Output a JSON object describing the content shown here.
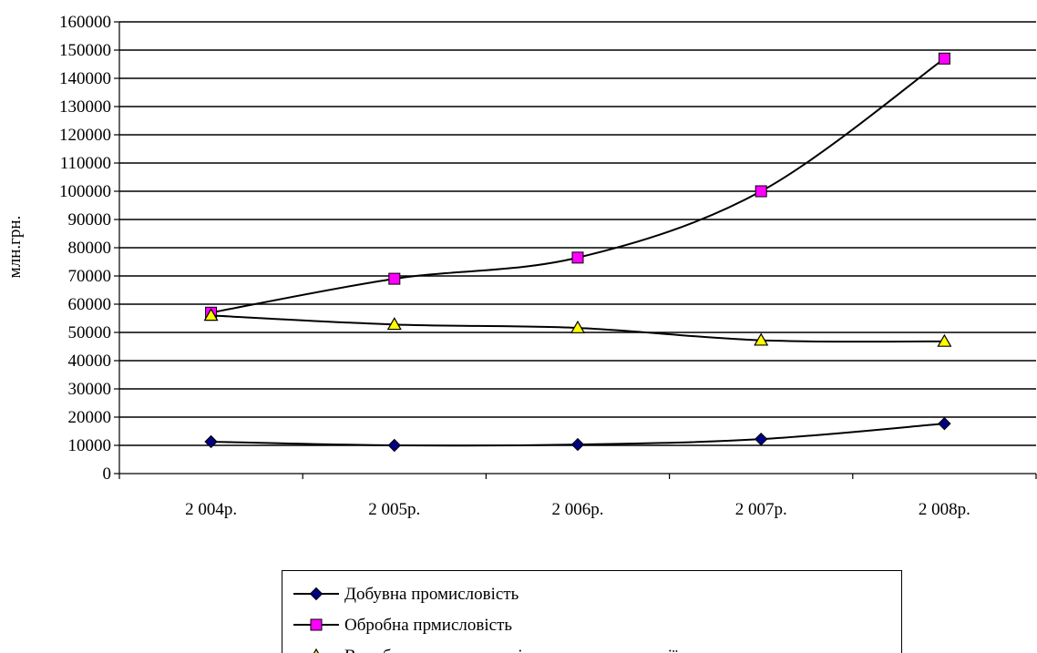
{
  "chart_data": {
    "type": "line",
    "ylabel": "млн.грн.",
    "xlabel": "",
    "categories": [
      "2 004р.",
      "2 005р.",
      "2 006р.",
      "2 007р.",
      "2 008р."
    ],
    "ylim": [
      0,
      160000
    ],
    "ytick_step": 10000,
    "grid": true,
    "smooth": true,
    "legend_position": "bottom-center",
    "series": [
      {
        "name": "Добувна промисловість",
        "marker": "diamond",
        "color": "#000080",
        "values": [
          11300,
          10000,
          10300,
          12200,
          17700
        ]
      },
      {
        "name": "Обробна прмисловість",
        "marker": "square",
        "color": "#ff00ff",
        "values": [
          57000,
          69000,
          76500,
          100000,
          147000
        ]
      },
      {
        "name": "Виробництво та розподілення електроенергії, газу та води",
        "marker": "triangle",
        "color": "#ffff00",
        "values": [
          56000,
          52800,
          51600,
          47200,
          46800
        ]
      }
    ]
  }
}
